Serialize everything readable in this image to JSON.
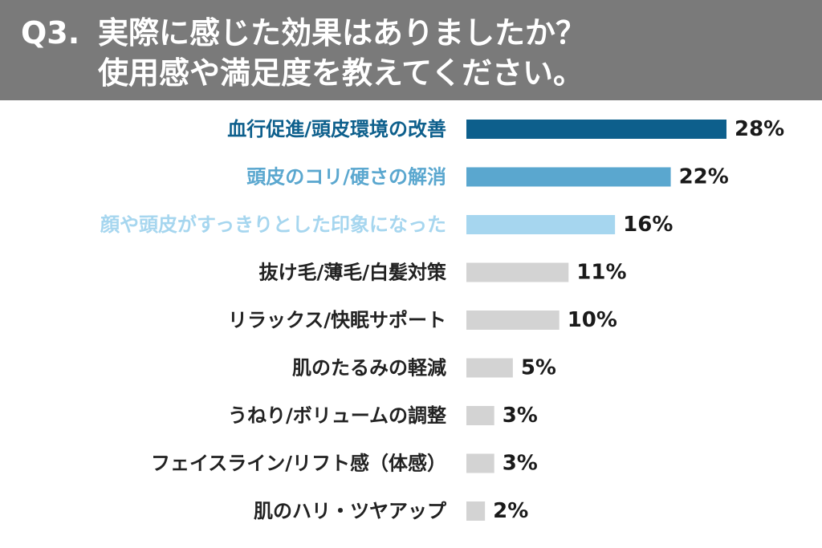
{
  "question": {
    "number": "Q3.",
    "line1": "実際に感じた効果はありましたか？",
    "line2": "使用感や満足度を教えてください。"
  },
  "colors": {
    "header_bg": "#7a7a7a",
    "bar_top1": "#0d5f8c",
    "bar_top2": "#5aa7cf",
    "bar_top3": "#a6d6ef",
    "bar_rest": "#d3d3d3",
    "label_rest": "#222222"
  },
  "chart_data": {
    "type": "bar",
    "orientation": "horizontal",
    "title": "実際に感じた効果はありましたか？使用感や満足度を教えてください。",
    "unit": "%",
    "categories": [
      "血行促進/頭皮環境の改善",
      "頭皮のコリ/硬さの解消",
      "顔や頭皮がすっきりとした印象になった",
      "抜け毛/薄毛/白髪対策",
      "リラックス/快眠サポート",
      "肌のたるみの軽減",
      "うねり/ボリュームの調整",
      "フェイスライン/リフト感（体感）",
      "肌のハリ・ツヤアップ"
    ],
    "values": [
      28,
      22,
      16,
      11,
      10,
      5,
      3,
      3,
      2
    ],
    "value_labels": [
      "28%",
      "22%",
      "16%",
      "11%",
      "10%",
      "5%",
      "3%",
      "3%",
      "2%"
    ],
    "xlim": [
      0,
      28
    ],
    "grid": false,
    "legend": "none"
  }
}
